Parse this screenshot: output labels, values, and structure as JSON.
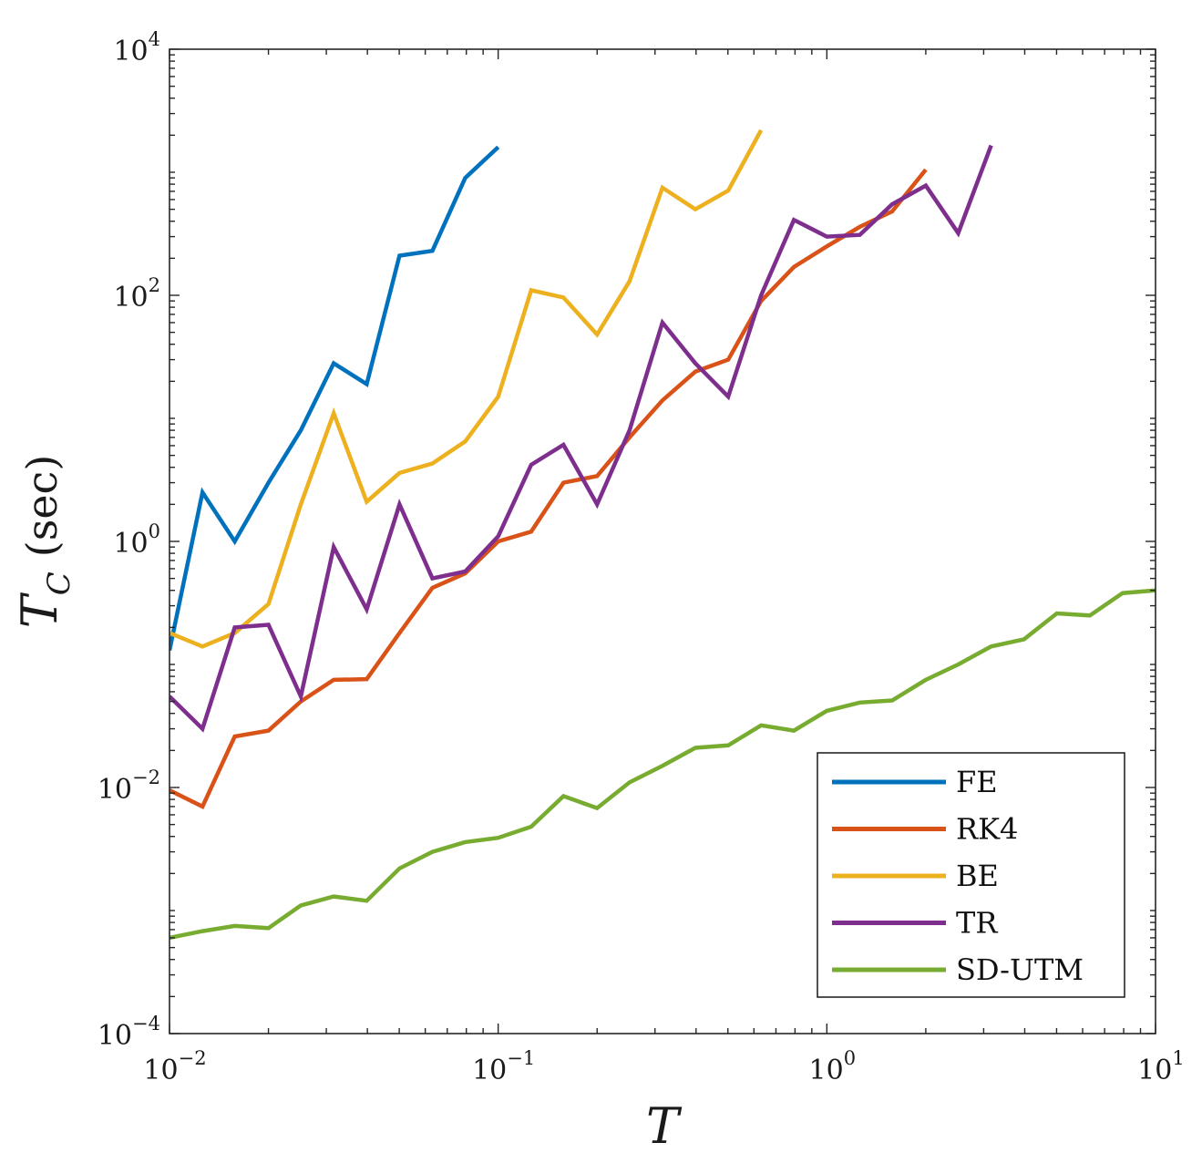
{
  "chart_data": {
    "type": "line",
    "xscale": "log",
    "yscale": "log",
    "xlim": [
      0.01,
      10
    ],
    "ylim": [
      0.0001,
      10000
    ],
    "grid": false,
    "legend_position": "bottom-right",
    "xlabel": "T",
    "ylabel": {
      "main": "T",
      "sub": "C",
      "unit": "(sec)"
    },
    "x_ticks": [
      {
        "value": 0.01,
        "base": "10",
        "exp": "−2"
      },
      {
        "value": 0.1,
        "base": "10",
        "exp": "−1"
      },
      {
        "value": 1,
        "base": "10",
        "exp": "0"
      },
      {
        "value": 10,
        "base": "10",
        "exp": "1"
      }
    ],
    "y_ticks": [
      {
        "value": 0.0001,
        "base": "10",
        "exp": "−4"
      },
      {
        "value": 0.01,
        "base": "10",
        "exp": "−2"
      },
      {
        "value": 1,
        "base": "10",
        "exp": "0"
      },
      {
        "value": 100,
        "base": "10",
        "exp": "2"
      },
      {
        "value": 10000,
        "base": "10",
        "exp": "4"
      }
    ],
    "series": [
      {
        "name": "FE",
        "color": "#0072BD",
        "x": [
          0.01,
          0.0126,
          0.0158,
          0.02,
          0.0251,
          0.0316,
          0.0398,
          0.0501,
          0.0631,
          0.0794,
          0.1
        ],
        "y": [
          0.13,
          2.5,
          1.0,
          3.0,
          8.0,
          28,
          19,
          210,
          230,
          900,
          1600
        ]
      },
      {
        "name": "RK4",
        "color": "#D95319",
        "x": [
          0.01,
          0.0126,
          0.0158,
          0.02,
          0.0251,
          0.0316,
          0.0398,
          0.0501,
          0.0631,
          0.0794,
          0.1,
          0.126,
          0.158,
          0.2,
          0.251,
          0.316,
          0.398,
          0.501,
          0.631,
          0.794,
          1.0,
          1.26,
          1.58,
          2.0
        ],
        "y": [
          0.0095,
          0.007,
          0.026,
          0.029,
          0.05,
          0.075,
          0.076,
          0.18,
          0.42,
          0.55,
          1.0,
          1.2,
          3.0,
          3.4,
          7.0,
          14,
          24,
          30,
          90,
          170,
          250,
          360,
          480,
          1050
        ]
      },
      {
        "name": "BE",
        "color": "#EDB120",
        "x": [
          0.01,
          0.0126,
          0.0158,
          0.02,
          0.0251,
          0.0316,
          0.0398,
          0.0501,
          0.0631,
          0.0794,
          0.1,
          0.126,
          0.158,
          0.2,
          0.251,
          0.316,
          0.398,
          0.501,
          0.631
        ],
        "y": [
          0.18,
          0.14,
          0.18,
          0.31,
          2.0,
          11,
          2.1,
          3.6,
          4.3,
          6.5,
          15,
          110,
          96,
          48,
          130,
          750,
          500,
          710,
          2200
        ]
      },
      {
        "name": "TR",
        "color": "#7E2F8E",
        "x": [
          0.01,
          0.0126,
          0.0158,
          0.02,
          0.0251,
          0.0316,
          0.0398,
          0.0501,
          0.0631,
          0.0794,
          0.1,
          0.126,
          0.158,
          0.2,
          0.251,
          0.316,
          0.398,
          0.501,
          0.631,
          0.794,
          1.0,
          1.26,
          1.58,
          2.0,
          2.51,
          3.16
        ],
        "y": [
          0.055,
          0.03,
          0.2,
          0.21,
          0.055,
          0.9,
          0.28,
          2.0,
          0.5,
          0.57,
          1.1,
          4.2,
          6.1,
          2.0,
          8.0,
          60,
          28,
          15,
          100,
          410,
          300,
          310,
          550,
          780,
          320,
          1650
        ]
      },
      {
        "name": "SD-UTM",
        "color": "#77AC30",
        "x": [
          0.01,
          0.0126,
          0.0158,
          0.02,
          0.0251,
          0.0316,
          0.0398,
          0.0501,
          0.0631,
          0.0794,
          0.1,
          0.126,
          0.158,
          0.2,
          0.251,
          0.316,
          0.398,
          0.501,
          0.631,
          0.794,
          1.0,
          1.26,
          1.58,
          2.0,
          2.51,
          3.16,
          3.98,
          5.01,
          6.31,
          7.94,
          10.0
        ],
        "y": [
          0.0006,
          0.00068,
          0.00075,
          0.00072,
          0.0011,
          0.0013,
          0.0012,
          0.0022,
          0.003,
          0.0036,
          0.0039,
          0.0048,
          0.0085,
          0.0068,
          0.011,
          0.015,
          0.021,
          0.022,
          0.032,
          0.029,
          0.042,
          0.049,
          0.051,
          0.075,
          0.1,
          0.14,
          0.16,
          0.26,
          0.25,
          0.38,
          0.4
        ]
      }
    ]
  }
}
